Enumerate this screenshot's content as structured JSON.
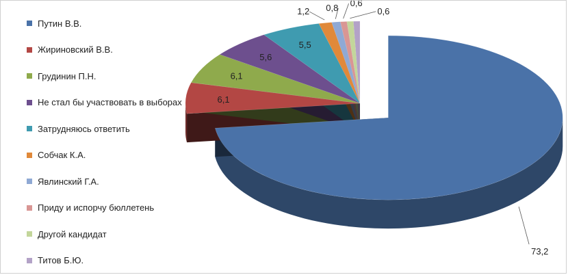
{
  "chart_data": {
    "type": "pie",
    "title": "",
    "categories": [
      "Путин В.В.",
      "Жириновский  В.В.",
      "Грудинин  П.Н.",
      "Не стал бы участвовать в выборах",
      "Затрудняюсь  ответить",
      "Собчак К.А.",
      "Явлинский  Г.А.",
      "Приду и испорчу бюллетень",
      "Другой кандидат",
      "Титов Б.Ю."
    ],
    "values": [
      73.2,
      6.1,
      6.1,
      5.6,
      5.5,
      1.2,
      0.8,
      0.6,
      0.6,
      0.6
    ],
    "value_labels": [
      "73,2",
      "6,1",
      "6,1",
      "5,6",
      "5,5",
      "1,2",
      "0,8",
      "0,6",
      "0,6",
      ""
    ],
    "colors": [
      "#4a72a8",
      "#b34744",
      "#8faa4c",
      "#6d4f8e",
      "#3f9bb0",
      "#e0893a",
      "#8fa9d4",
      "#d99694",
      "#c3d69b",
      "#b3a2c7"
    ],
    "legend_position": "left",
    "exploded": "Путин В.В.",
    "style": "3d"
  }
}
